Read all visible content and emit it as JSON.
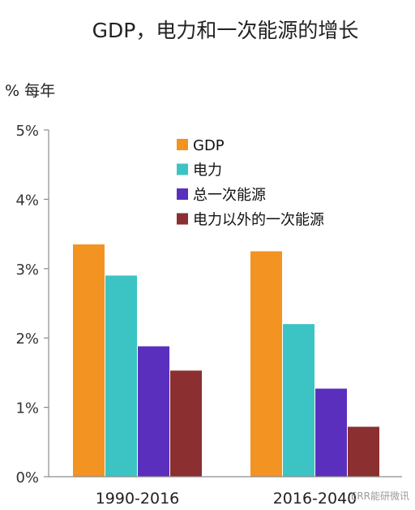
{
  "chart_data": {
    "type": "bar",
    "title": "GDP，电力和一次能源的增长",
    "unit_label": "% 每年",
    "categories": [
      "1990-2016",
      "2016-2040"
    ],
    "series": [
      {
        "name": "GDP",
        "values": [
          3.35,
          3.25
        ],
        "color": "#f39322"
      },
      {
        "name": "电力",
        "values": [
          2.9,
          2.2
        ],
        "color": "#3cc3c3"
      },
      {
        "name": "总一次能源",
        "values": [
          1.88,
          1.27
        ],
        "color": "#5b2fbe"
      },
      {
        "name": "电力以外的一次能源",
        "values": [
          1.53,
          0.72
        ],
        "color": "#8b2f30"
      }
    ],
    "ylim": [
      0,
      5
    ],
    "yticks": [
      "0%",
      "1%",
      "2%",
      "3%",
      "4%",
      "5%"
    ],
    "legend_position": "top-center",
    "grid": false
  },
  "watermark": "ERR能研微讯"
}
